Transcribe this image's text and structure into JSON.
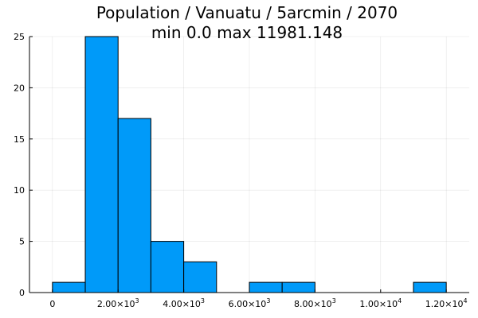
{
  "chart_data": {
    "type": "bar",
    "title": "Population / Vanuatu / 5arcmin / 2070",
    "subtitle": "min 0.0  max 11981.148",
    "xlabel": "",
    "ylabel": "",
    "bar_color": "#009af9",
    "edge_color": "#000000",
    "grid": true,
    "xlim": [
      -700,
      12700
    ],
    "ylim": [
      0,
      25
    ],
    "bins": [
      {
        "start": 0,
        "end": 1000,
        "count": 1
      },
      {
        "start": 1000,
        "end": 2000,
        "count": 25
      },
      {
        "start": 2000,
        "end": 3000,
        "count": 17
      },
      {
        "start": 3000,
        "end": 4000,
        "count": 5
      },
      {
        "start": 4000,
        "end": 5000,
        "count": 3
      },
      {
        "start": 5000,
        "end": 6000,
        "count": 0
      },
      {
        "start": 6000,
        "end": 7000,
        "count": 1
      },
      {
        "start": 7000,
        "end": 8000,
        "count": 1
      },
      {
        "start": 8000,
        "end": 9000,
        "count": 0
      },
      {
        "start": 9000,
        "end": 10000,
        "count": 0
      },
      {
        "start": 10000,
        "end": 11000,
        "count": 0
      },
      {
        "start": 11000,
        "end": 12000,
        "count": 1
      }
    ],
    "x_ticks": [
      {
        "value": 0,
        "mantissa": "0",
        "exponent": ""
      },
      {
        "value": 2000,
        "mantissa": "2.00×10",
        "exponent": "3"
      },
      {
        "value": 4000,
        "mantissa": "4.00×10",
        "exponent": "3"
      },
      {
        "value": 6000,
        "mantissa": "6.00×10",
        "exponent": "3"
      },
      {
        "value": 8000,
        "mantissa": "8.00×10",
        "exponent": "3"
      },
      {
        "value": 10000,
        "mantissa": "1.00×10",
        "exponent": "4"
      },
      {
        "value": 12000,
        "mantissa": "1.20×10",
        "exponent": "4"
      }
    ],
    "y_ticks": [
      {
        "value": 0,
        "label": "0"
      },
      {
        "value": 5,
        "label": "5"
      },
      {
        "value": 10,
        "label": "10"
      },
      {
        "value": 15,
        "label": "15"
      },
      {
        "value": 20,
        "label": "20"
      },
      {
        "value": 25,
        "label": "25"
      }
    ]
  }
}
